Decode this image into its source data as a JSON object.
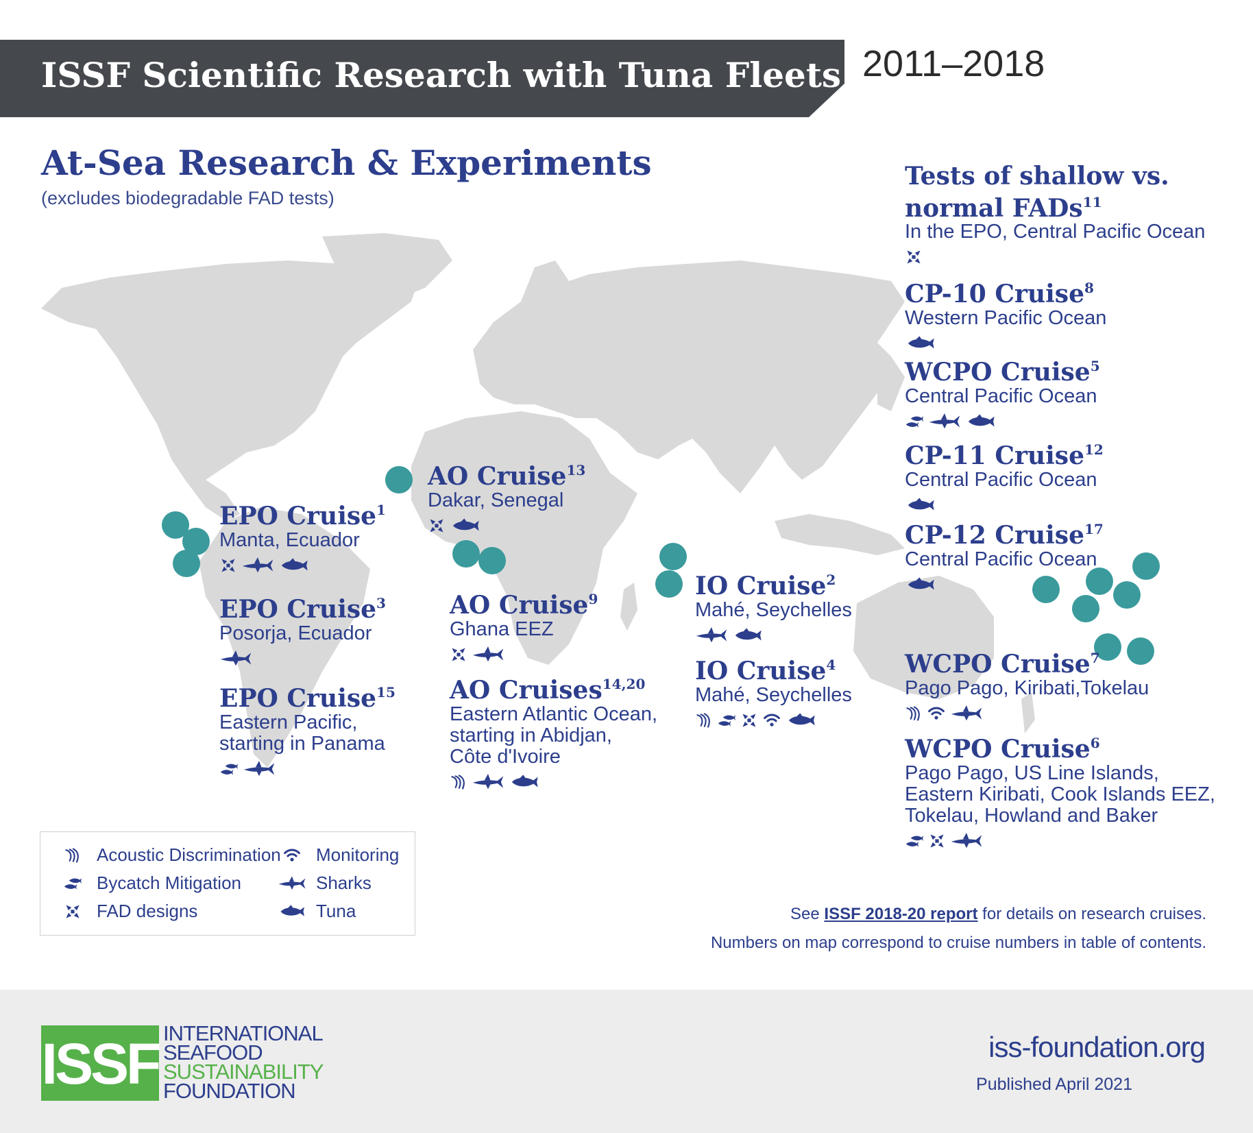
{
  "header": {
    "title": "ISSF Scientific Research with Tuna Fleets",
    "years": "2011–2018"
  },
  "section": {
    "title": "At-Sea Research & Experiments",
    "subtitle": "(excludes biodegradable FAD tests)"
  },
  "colors": {
    "banner": "#45484d",
    "navy": "#2c3e8c",
    "teal": "#3a9a9c",
    "land": "#d9d9d9",
    "green": "#56b14a"
  },
  "cruises": [
    {
      "id": "epo1",
      "name": "EPO Cruise",
      "sup": "1",
      "location": "Manta, Ecuador",
      "icons": [
        "fad-icon",
        "shark-icon",
        "tuna-icon"
      ]
    },
    {
      "id": "epo3",
      "name": "EPO Cruise",
      "sup": "3",
      "location": "Posorja, Ecuador",
      "icons": [
        "shark-icon"
      ]
    },
    {
      "id": "epo15",
      "name": "EPO Cruise",
      "sup": "15",
      "location": "Eastern Pacific,\nstarting in Panama",
      "icons": [
        "bycatch-icon",
        "shark-icon"
      ]
    },
    {
      "id": "ao13",
      "name": "AO Cruise",
      "sup": "13",
      "location": "Dakar, Senegal",
      "icons": [
        "fad-icon",
        "tuna-icon"
      ]
    },
    {
      "id": "ao9",
      "name": "AO Cruise",
      "sup": "9",
      "location": "Ghana EEZ",
      "icons": [
        "fad-icon",
        "shark-icon"
      ]
    },
    {
      "id": "ao1420",
      "name": "AO Cruises",
      "sup": "14,20",
      "location": "Eastern Atlantic Ocean,\nstarting in Abidjan,\nCôte d'Ivoire",
      "icons": [
        "acoustic-icon",
        "shark-icon",
        "tuna-icon"
      ]
    },
    {
      "id": "io2",
      "name": "IO Cruise",
      "sup": "2",
      "location": "Mahé, Seychelles",
      "icons": [
        "shark-icon",
        "tuna-icon"
      ]
    },
    {
      "id": "io4",
      "name": "IO Cruise",
      "sup": "4",
      "location": "Mahé, Seychelles",
      "icons": [
        "acoustic-icon",
        "bycatch-icon",
        "fad-icon",
        "monitoring-icon",
        "tuna-icon"
      ]
    },
    {
      "id": "fads11",
      "name": "Tests of shallow vs.\nnormal FADs",
      "sup": "11",
      "location": "In the EPO, Central Pacific Ocean",
      "icons": [
        "fad-icon"
      ]
    },
    {
      "id": "cp10",
      "name": "CP-10 Cruise",
      "sup": "8",
      "location": "Western Pacific Ocean",
      "icons": [
        "tuna-icon"
      ]
    },
    {
      "id": "wcpo5",
      "name": "WCPO Cruise",
      "sup": "5",
      "location": "Central Pacific Ocean",
      "icons": [
        "bycatch-icon",
        "shark-icon",
        "tuna-icon"
      ]
    },
    {
      "id": "cp11",
      "name": "CP-11 Cruise",
      "sup": "12",
      "location": "Central Pacific Ocean",
      "icons": [
        "tuna-icon"
      ]
    },
    {
      "id": "cp12",
      "name": "CP-12 Cruise",
      "sup": "17",
      "location": "Central Pacific Ocean",
      "icons": [
        "tuna-icon"
      ]
    },
    {
      "id": "wcpo7",
      "name": "WCPO Cruise",
      "sup": "7",
      "location": "Pago Pago, Kiribati,Tokelau",
      "icons": [
        "acoustic-icon",
        "monitoring-icon",
        "shark-icon"
      ]
    },
    {
      "id": "wcpo6",
      "name": "WCPO Cruise",
      "sup": "6",
      "location": "Pago Pago, US Line Islands,\nEastern Kiribati, Cook Islands EEZ,\nTokelau, Howland and Baker",
      "icons": [
        "bycatch-icon",
        "fad-icon",
        "shark-icon"
      ]
    }
  ],
  "legend": {
    "items": [
      {
        "icon": "acoustic-icon",
        "label": "Acoustic Discrimination"
      },
      {
        "icon": "bycatch-icon",
        "label": "Bycatch Mitigation"
      },
      {
        "icon": "fad-icon",
        "label": "FAD designs"
      },
      {
        "icon": "monitoring-icon",
        "label": "Monitoring"
      },
      {
        "icon": "shark-icon",
        "label": "Sharks"
      },
      {
        "icon": "tuna-icon",
        "label": "Tuna"
      }
    ]
  },
  "notes": {
    "see_prefix": "See ",
    "report_link": "ISSF 2018-20 report",
    "see_suffix": " for details on research cruises.",
    "numbers_note": "Numbers on map correspond to cruise numbers in table of contents."
  },
  "footer": {
    "logo_mark": "ISSF",
    "org_lines": [
      "INTERNATIONAL",
      "SEAFOOD",
      "SUSTAINABILITY",
      "FOUNDATION"
    ],
    "website": "iss-foundation.org",
    "published": "Published April 2021"
  }
}
